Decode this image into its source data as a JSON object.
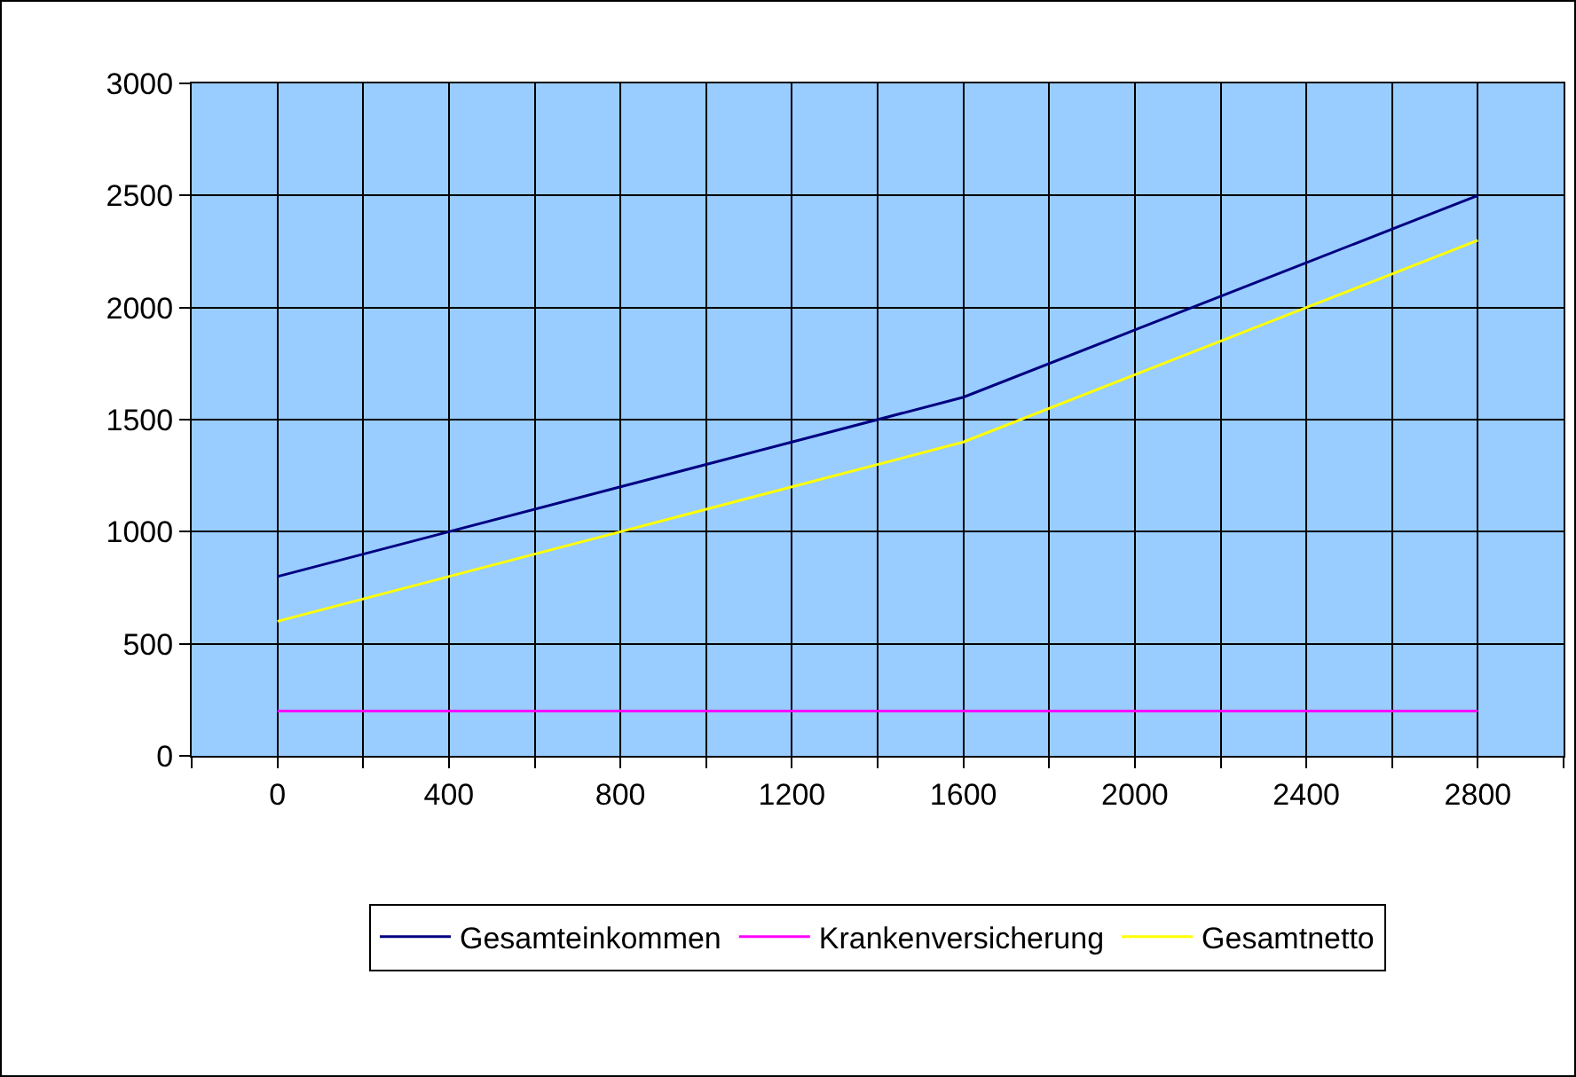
{
  "chart_data": {
    "type": "line",
    "x": [
      0,
      400,
      800,
      1200,
      1600,
      2000,
      2400,
      2800
    ],
    "series": [
      {
        "name": "Gesamteinkommen",
        "color": "#000080",
        "values": [
          800,
          1000,
          1200,
          1400,
          1600,
          1900,
          2200,
          2500
        ]
      },
      {
        "name": "Krankenversicherung",
        "color": "#ff00ff",
        "values": [
          200,
          200,
          200,
          200,
          200,
          200,
          200,
          200
        ]
      },
      {
        "name": "Gesamtnetto",
        "color": "#ffff00",
        "values": [
          600,
          800,
          1000,
          1200,
          1400,
          1700,
          2000,
          2300
        ]
      }
    ],
    "xlim": [
      -200,
      3000
    ],
    "xticks": [
      {
        "value": -200,
        "label": null
      },
      0,
      {
        "value": 200,
        "label": null
      },
      400,
      {
        "value": 600,
        "label": null
      },
      800,
      {
        "value": 1000,
        "label": null
      },
      1200,
      {
        "value": 1400,
        "label": null
      },
      1600,
      {
        "value": 1800,
        "label": null
      },
      2000,
      {
        "value": 2200,
        "label": null
      },
      2400,
      {
        "value": 2600,
        "label": null
      },
      2800,
      {
        "value": 3000,
        "label": null
      }
    ],
    "ylim": [
      0,
      3000
    ],
    "yticks": [
      0,
      500,
      1000,
      1500,
      2000,
      2500,
      3000
    ],
    "grid": true,
    "legend": "bottom",
    "marker": "none",
    "line_style": "solid"
  }
}
